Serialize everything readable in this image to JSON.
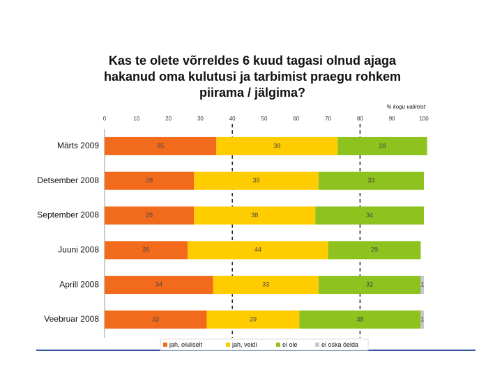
{
  "chart_data": {
    "type": "stacked-bar-horizontal",
    "title": [
      "Kas te olete võrreldes 6 kuud tagasi olnud ajaga",
      "hakanud oma kulutusi ja tarbimist praegu rohkem",
      "piirama / jälgima?"
    ],
    "subtitle": "% kogu valimist",
    "categories": [
      "Märts 2009",
      "Detsember 2008",
      "September 2008",
      "Juuni 2008",
      "Aprill 2008",
      "Veebruar 2008"
    ],
    "series": [
      {
        "name": "jah, oluliselt",
        "color": "#f26b1d",
        "values": [
          35,
          28,
          28,
          26,
          34,
          32
        ]
      },
      {
        "name": "jah, veidi",
        "color": "#ffcc00",
        "values": [
          38,
          39,
          38,
          44,
          33,
          29
        ]
      },
      {
        "name": "ei ole",
        "color": "#8dc21f",
        "values": [
          28,
          33,
          34,
          29,
          32,
          38
        ]
      },
      {
        "name": "ei oska öelda",
        "color": "#c8c8d2",
        "values": [
          null,
          null,
          null,
          null,
          1,
          1
        ]
      }
    ],
    "xlim": [
      0,
      100
    ],
    "xticks": [
      0,
      10,
      20,
      30,
      40,
      50,
      60,
      70,
      80,
      90,
      100
    ],
    "reference_lines": [
      40,
      80
    ],
    "legend": "bottom"
  }
}
